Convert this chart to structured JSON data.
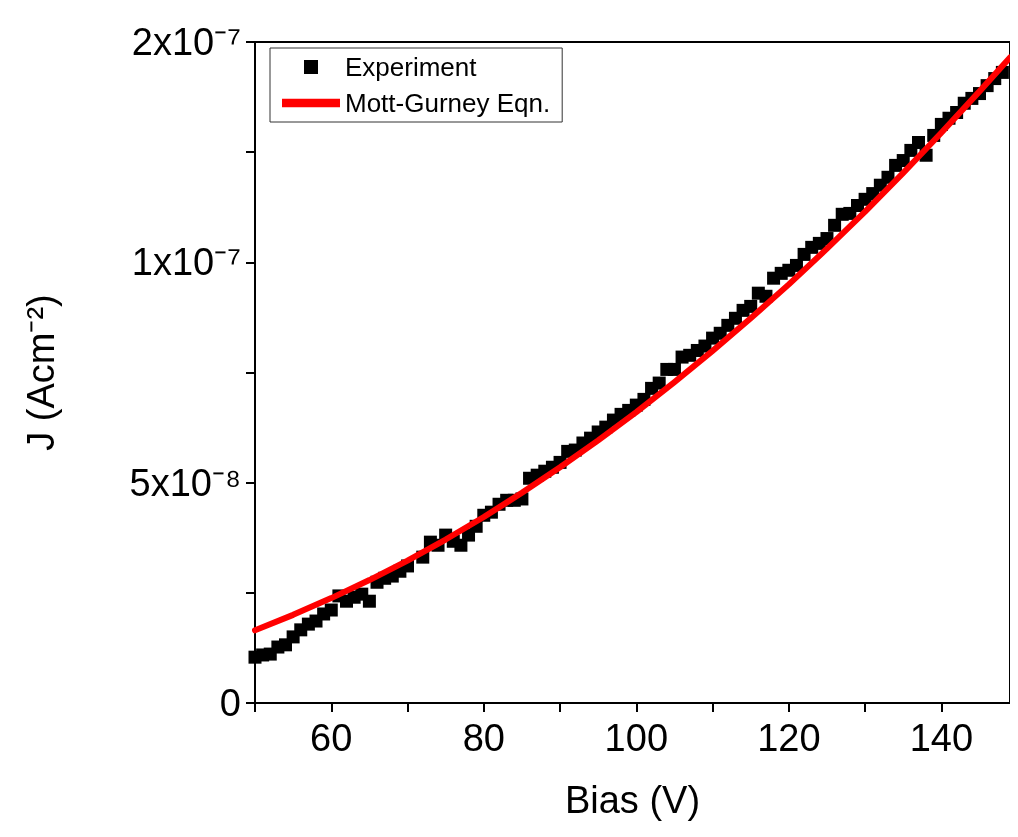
{
  "chart_data": {
    "type": "scatter",
    "xlabel": "Bias (V)",
    "ylabel": "J (Acm⁻²)",
    "xlim": [
      50,
      149
    ],
    "xticks": [
      {
        "value": 50,
        "label": null
      },
      60,
      {
        "value": 70,
        "label": null
      },
      80,
      {
        "value": 90,
        "label": null
      },
      100,
      {
        "value": 110,
        "label": null
      },
      120,
      {
        "value": 130,
        "label": null
      },
      140
    ],
    "ylim": [
      0,
      1.5e-07
    ],
    "yticks": [
      {
        "value": 0,
        "label": "0"
      },
      {
        "value": 2.5e-08,
        "label": null
      },
      {
        "value": 5e-08,
        "label": "5x10⁻⁸"
      },
      {
        "value": 7.5e-08,
        "label": null
      },
      {
        "value": 1e-07,
        "label": "1x10⁻⁷"
      },
      {
        "value": 1.25e-07,
        "label": null
      },
      {
        "value": 1.5e-07,
        "label": "2x10⁻⁷"
      }
    ],
    "grid": false,
    "legend": "top left",
    "series": [
      {
        "name": "Experiment",
        "type": "scatter",
        "marker": "square",
        "color": "#000000",
        "x": [
          50,
          51,
          52,
          53,
          54,
          55,
          56,
          57,
          58,
          59,
          60,
          61,
          62,
          63,
          64,
          65,
          66,
          67,
          68,
          69,
          70,
          72,
          73,
          74,
          75,
          76,
          77,
          78,
          79,
          80,
          81,
          82,
          83,
          84,
          85,
          86,
          87,
          88,
          89,
          90,
          91,
          92,
          93,
          94,
          95,
          96,
          97,
          98,
          99,
          100,
          101,
          102,
          103,
          104,
          105,
          106,
          107,
          108,
          109,
          110,
          111,
          112,
          113,
          114,
          115,
          116,
          117,
          118,
          119,
          120,
          121,
          122,
          123,
          124,
          125,
          126,
          127,
          128,
          129,
          130,
          131,
          132,
          133,
          134,
          135,
          136,
          137,
          138,
          139,
          140,
          141,
          142,
          143,
          144,
          145,
          146,
          147,
          148
        ],
        "values": [
          1.04e-08,
          1.09e-08,
          1.11e-08,
          1.27e-08,
          1.32e-08,
          1.5e-08,
          1.66e-08,
          1.79e-08,
          1.86e-08,
          2.02e-08,
          2.11e-08,
          2.43e-08,
          2.31e-08,
          2.4e-08,
          2.47e-08,
          2.31e-08,
          2.74e-08,
          2.83e-08,
          2.88e-08,
          2.99e-08,
          3.11e-08,
          3.31e-08,
          3.65e-08,
          3.58e-08,
          3.81e-08,
          3.67e-08,
          3.58e-08,
          3.81e-08,
          4.01e-08,
          4.26e-08,
          4.33e-08,
          4.51e-08,
          4.6e-08,
          4.6e-08,
          4.63e-08,
          5.1e-08,
          5.17e-08,
          5.26e-08,
          5.35e-08,
          5.46e-08,
          5.71e-08,
          5.74e-08,
          5.9e-08,
          6.01e-08,
          6.15e-08,
          6.26e-08,
          6.42e-08,
          6.55e-08,
          6.64e-08,
          6.76e-08,
          6.89e-08,
          7.14e-08,
          7.26e-08,
          7.57e-08,
          7.57e-08,
          7.85e-08,
          7.89e-08,
          8e-08,
          8.1e-08,
          8.28e-08,
          8.39e-08,
          8.57e-08,
          8.73e-08,
          8.91e-08,
          9e-08,
          9.3e-08,
          9.23e-08,
          9.64e-08,
          9.75e-08,
          9.82e-08,
          9.93e-08,
          1.018e-07,
          1.034e-07,
          1.043e-07,
          1.054e-07,
          1.084e-07,
          1.109e-07,
          1.111e-07,
          1.129e-07,
          1.143e-07,
          1.156e-07,
          1.175e-07,
          1.193e-07,
          1.22e-07,
          1.231e-07,
          1.254e-07,
          1.272e-07,
          1.243e-07,
          1.288e-07,
          1.313e-07,
          1.327e-07,
          1.34e-07,
          1.361e-07,
          1.372e-07,
          1.383e-07,
          1.401e-07,
          1.417e-07,
          1.431e-07
        ]
      },
      {
        "name": "Mott-Gurney Eqn.",
        "type": "line",
        "marker": "none",
        "color": "#ff0000",
        "x": [
          50,
          55,
          60,
          65,
          70,
          75,
          80,
          85,
          90,
          95,
          100,
          105,
          110,
          115,
          120,
          125,
          130,
          135,
          140,
          145,
          149
        ],
        "values": [
          1.65e-08,
          2e-08,
          2.38e-08,
          2.79e-08,
          3.23e-08,
          3.71e-08,
          4.22e-08,
          4.77e-08,
          5.35e-08,
          5.96e-08,
          6.6e-08,
          7.28e-08,
          7.99e-08,
          8.73e-08,
          9.5e-08,
          1.031e-07,
          1.115e-07,
          1.203e-07,
          1.294e-07,
          1.388e-07,
          1.465e-07
        ]
      }
    ]
  }
}
